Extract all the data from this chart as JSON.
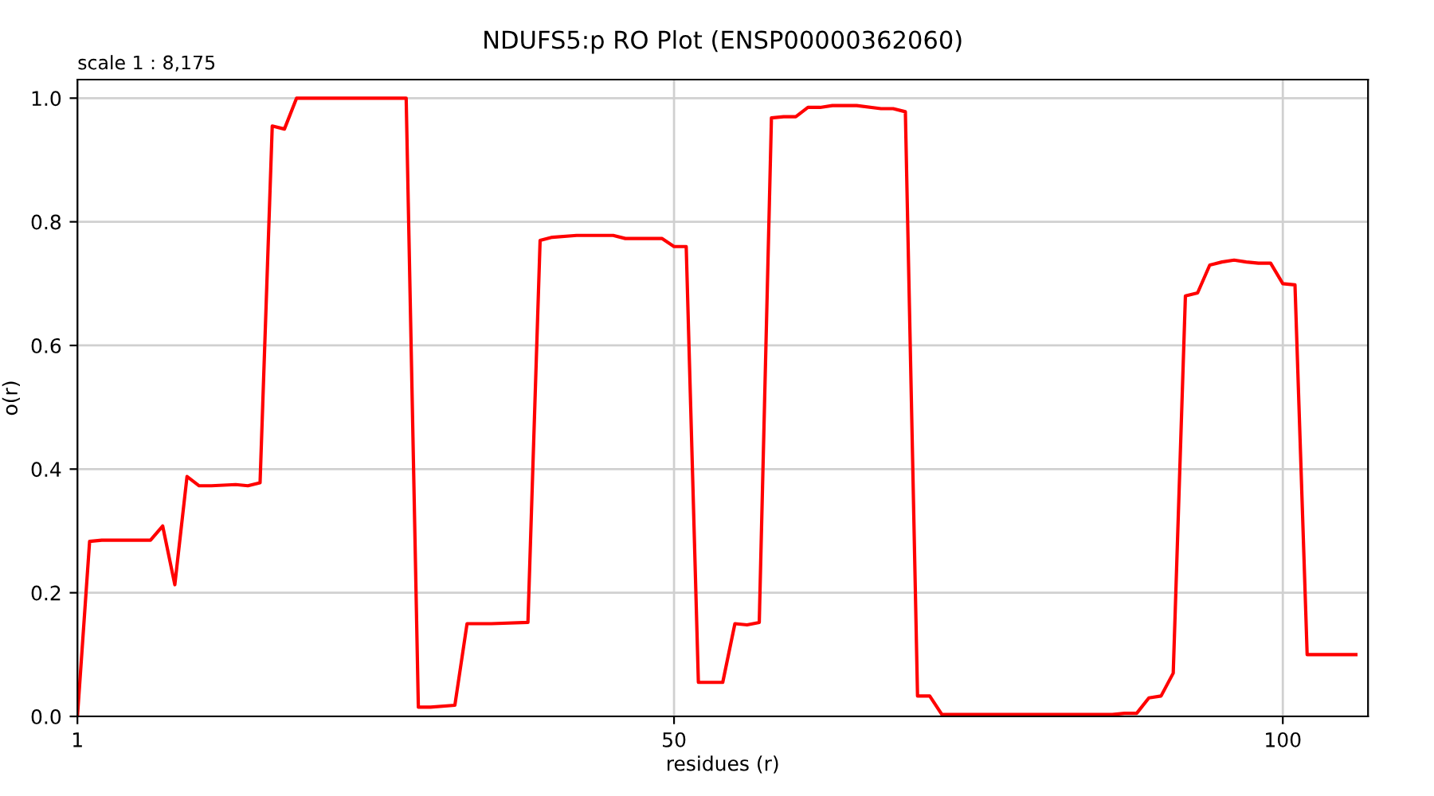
{
  "chart_data": {
    "type": "line",
    "title": "NDUFS5:p RO Plot (ENSP00000362060)",
    "xlabel": "residues (r)",
    "ylabel": "o(r)",
    "annotations": [
      "scale 1 : 8,175"
    ],
    "x": [
      1,
      2,
      3,
      7,
      8,
      9,
      10,
      11,
      12,
      14,
      15,
      16,
      17,
      18,
      19,
      28,
      29,
      30,
      32,
      33,
      35,
      38,
      39,
      40,
      42,
      45,
      46,
      49,
      50,
      51,
      52,
      54,
      55,
      56,
      57,
      58,
      59,
      60,
      61,
      62,
      63,
      65,
      67,
      68,
      69,
      70,
      71,
      72,
      86,
      87,
      88,
      89,
      90,
      91,
      92,
      93,
      94,
      95,
      96,
      97,
      98,
      99,
      100,
      101,
      102,
      106
    ],
    "series": [
      {
        "color": "#ff0000",
        "values": [
          0,
          0.283,
          0.285,
          0.285,
          0.308,
          0.213,
          0.388,
          0.373,
          0.373,
          0.375,
          0.373,
          0.378,
          0.955,
          0.95,
          1.0,
          1.0,
          0.015,
          0.015,
          0.018,
          0.15,
          0.15,
          0.152,
          0.77,
          0.775,
          0.778,
          0.778,
          0.773,
          0.773,
          0.76,
          0.76,
          0.055,
          0.055,
          0.15,
          0.148,
          0.152,
          0.968,
          0.97,
          0.97,
          0.985,
          0.985,
          0.988,
          0.988,
          0.983,
          0.983,
          0.978,
          0.033,
          0.033,
          0.003,
          0.003,
          0.005,
          0.005,
          0.03,
          0.033,
          0.07,
          0.68,
          0.685,
          0.73,
          0.735,
          0.738,
          0.735,
          0.733,
          0.733,
          0.7,
          0.698,
          0.1,
          0.1
        ]
      }
    ],
    "xlim": [
      1,
      107
    ],
    "xticks": [
      1,
      50,
      100
    ],
    "ylim": [
      0,
      1.03
    ],
    "yticks": [
      {
        "value": 0,
        "label": "0.0"
      },
      {
        "value": 0.2,
        "label": "0.2"
      },
      {
        "value": 0.4,
        "label": "0.4"
      },
      {
        "value": 0.6,
        "label": "0.6"
      },
      {
        "value": 0.8,
        "label": "0.8"
      },
      {
        "value": 1.0,
        "label": "1.0"
      }
    ],
    "grid": true,
    "legend": false,
    "marker": "none",
    "line_style": "solid"
  }
}
